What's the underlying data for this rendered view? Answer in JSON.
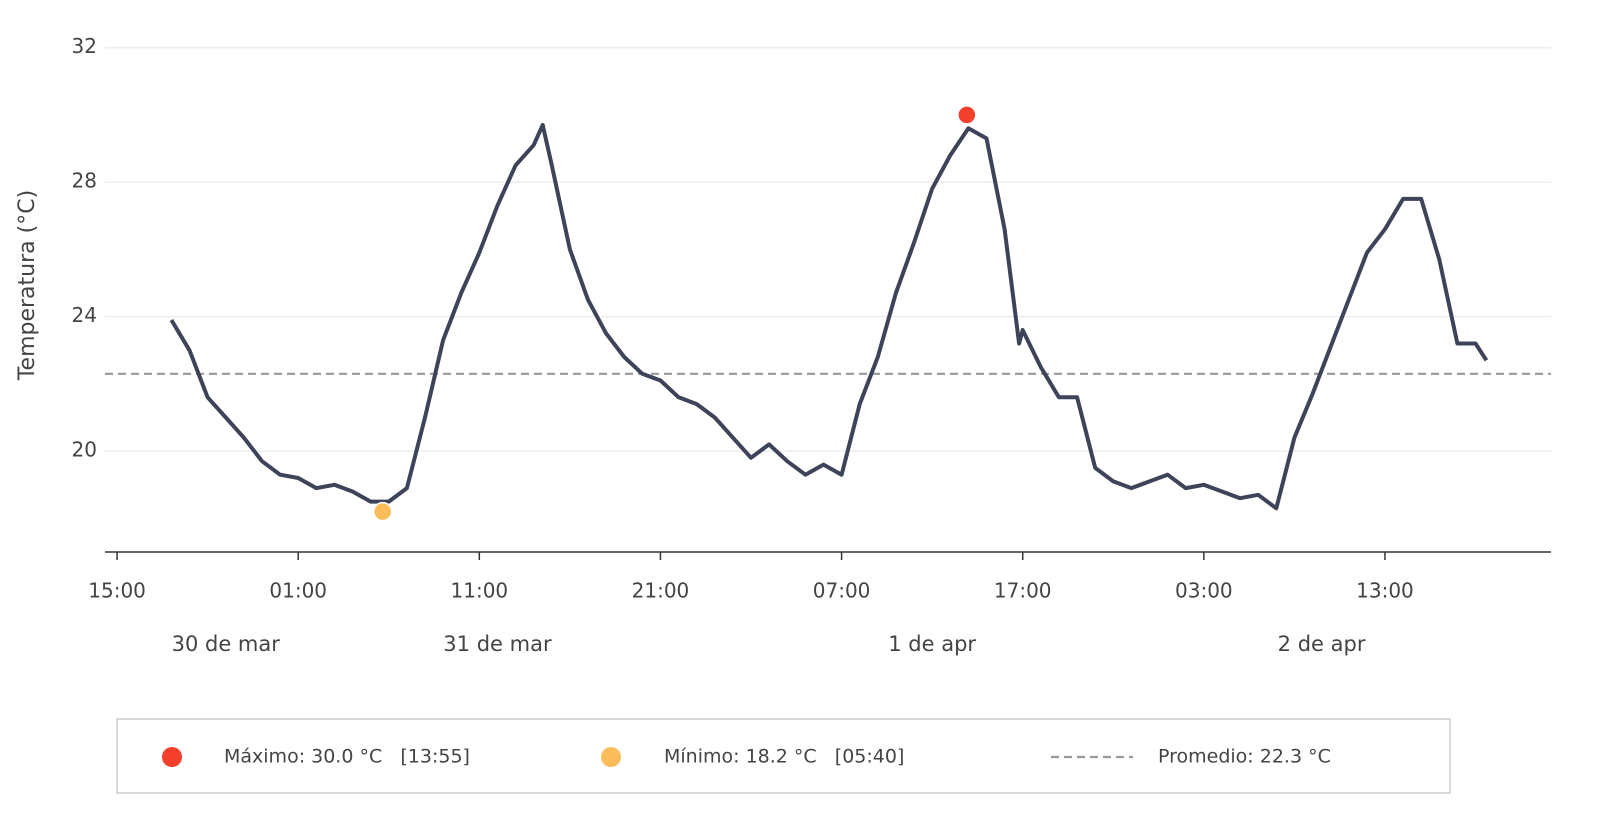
{
  "chart_data": {
    "type": "line",
    "y_label": "Temperatura (°C)",
    "ylim": [
      17,
      33
    ],
    "yticks": [
      20,
      24,
      28,
      32
    ],
    "grid": true,
    "xlim": [
      "03-30 14:20",
      "04-02 22:10"
    ],
    "xticks": [
      {
        "value": "03-30 15:00",
        "label": "15:00"
      },
      {
        "value": "03-31 01:00",
        "label": "01:00"
      },
      {
        "value": "03-31 11:00",
        "label": "11:00"
      },
      {
        "value": "03-31 21:00",
        "label": "21:00"
      },
      {
        "value": "04-01 07:00",
        "label": "07:00"
      },
      {
        "value": "04-01 17:00",
        "label": "17:00"
      },
      {
        "value": "04-02 03:00",
        "label": "03:00"
      },
      {
        "value": "04-02 13:00",
        "label": "13:00"
      }
    ],
    "date_labels": [
      {
        "value": "03-30 21:00",
        "label": "30 de mar"
      },
      {
        "value": "03-31 12:00",
        "label": "31 de mar"
      },
      {
        "value": "04-01 12:00",
        "label": "1 de apr"
      },
      {
        "value": "04-02 09:30",
        "label": "2 de apr"
      }
    ],
    "series": [
      {
        "color": "#3d4459",
        "x": [
          "03-30 18:00",
          "03-30 19:00",
          "03-30 20:00",
          "03-30 21:00",
          "03-30 22:00",
          "03-30 23:00",
          "03-31 00:00",
          "03-31 01:00",
          "03-31 02:00",
          "03-31 03:00",
          "03-31 04:00",
          "03-31 05:00",
          "03-31 06:00",
          "03-31 07:00",
          "03-31 08:00",
          "03-31 09:00",
          "03-31 10:00",
          "03-31 11:00",
          "03-31 12:00",
          "03-31 13:00",
          "03-31 14:00",
          "03-31 14:30",
          "03-31 15:00",
          "03-31 16:00",
          "03-31 17:00",
          "03-31 18:00",
          "03-31 19:00",
          "03-31 20:00",
          "03-31 21:00",
          "03-31 22:00",
          "03-31 23:00",
          "04-01 00:00",
          "04-01 01:00",
          "04-01 02:00",
          "04-01 03:00",
          "04-01 04:00",
          "04-01 05:00",
          "04-01 06:00",
          "04-01 07:00",
          "04-01 08:00",
          "04-01 09:00",
          "04-01 10:00",
          "04-01 11:00",
          "04-01 12:00",
          "04-01 13:00",
          "04-01 14:00",
          "04-01 15:00",
          "04-01 16:00",
          "04-01 16:48",
          "04-01 17:00",
          "04-01 18:00",
          "04-01 19:00",
          "04-01 20:00",
          "04-01 21:00",
          "04-01 22:00",
          "04-01 23:00",
          "04-02 00:00",
          "04-02 01:00",
          "04-02 02:00",
          "04-02 03:00",
          "04-02 04:00",
          "04-02 05:00",
          "04-02 06:00",
          "04-02 07:00",
          "04-02 08:00",
          "04-02 09:00",
          "04-02 10:00",
          "04-02 11:00",
          "04-02 12:00",
          "04-02 13:00",
          "04-02 14:00",
          "04-02 15:00",
          "04-02 16:00",
          "04-02 17:00",
          "04-02 18:00",
          "04-02 18:36"
        ],
        "values": [
          23.9,
          23.0,
          21.6,
          21.0,
          20.4,
          19.7,
          19.3,
          19.2,
          18.9,
          19.0,
          18.8,
          18.5,
          18.5,
          18.9,
          21.0,
          23.3,
          24.7,
          25.9,
          27.3,
          28.5,
          29.1,
          29.7,
          28.5,
          26.0,
          24.5,
          23.5,
          22.8,
          22.3,
          22.1,
          21.6,
          21.4,
          21.0,
          20.4,
          19.8,
          20.2,
          19.7,
          19.3,
          19.6,
          19.3,
          21.4,
          22.8,
          24.7,
          26.2,
          27.8,
          28.8,
          29.6,
          29.3,
          26.6,
          23.2,
          23.6,
          22.5,
          21.6,
          21.6,
          19.5,
          19.1,
          18.9,
          19.1,
          19.3,
          18.9,
          19.0,
          18.8,
          18.6,
          18.7,
          18.3,
          20.4,
          21.7,
          23.1,
          24.5,
          25.9,
          26.6,
          27.5,
          27.5,
          25.7,
          23.2,
          23.2,
          22.7
        ]
      }
    ],
    "max_point": {
      "x": "04-01 13:55",
      "value": 30.0,
      "color": "#f4402a",
      "label": "Máximo: 30.0 °C   [13:55]"
    },
    "min_point": {
      "x": "03-31 05:40",
      "value": 18.2,
      "color": "#fbbd5c",
      "label": "Mínimo: 18.2 °C   [05:40]"
    },
    "mean": {
      "value": 22.3,
      "color": "#999999",
      "label": "Promedio: 22.3 °C"
    },
    "legend": "bottom"
  }
}
